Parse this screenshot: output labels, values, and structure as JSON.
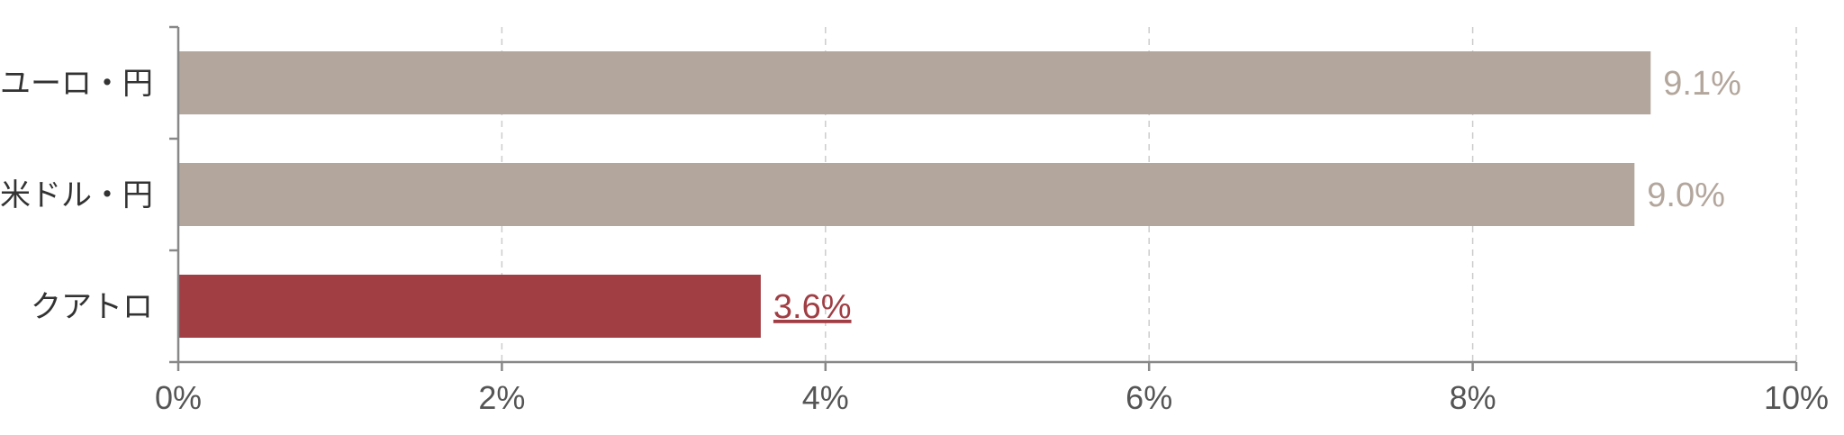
{
  "chart_data": {
    "type": "bar",
    "orientation": "horizontal",
    "categories": [
      "ユーロ・円",
      "米ドル・円",
      "クアトロ"
    ],
    "values": [
      9.1,
      9.0,
      3.6
    ],
    "value_labels": [
      "9.1%",
      "9.0%",
      "3.6%"
    ],
    "highlight_index": 2,
    "xlim": [
      0,
      10
    ],
    "xticks": [
      0,
      2,
      4,
      6,
      8,
      10
    ],
    "xtick_labels": [
      "0%",
      "2%",
      "4%",
      "6%",
      "8%",
      "10%"
    ],
    "grid": "vertical dashed",
    "title": "",
    "xlabel": "",
    "ylabel": ""
  },
  "colors": {
    "bar_default": "#b3a69c",
    "bar_highlight": "#a03e44",
    "label_default": "#b3a69c",
    "label_highlight": "#a03e44",
    "axis": "#888888",
    "grid": "#cccccc"
  }
}
